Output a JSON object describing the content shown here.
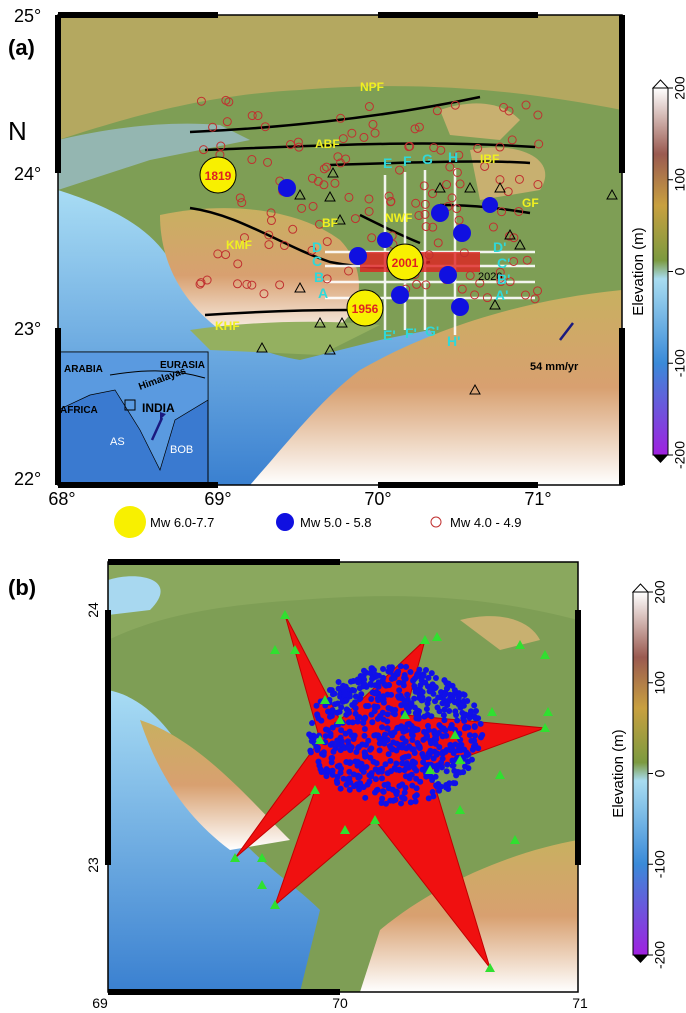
{
  "panel_a": {
    "label": "(a)",
    "north": "N",
    "lat_ticks": [
      "25°",
      "24°",
      "23°",
      "22°"
    ],
    "lon_ticks": [
      "68°",
      "69°",
      "70°",
      "71°"
    ],
    "faults": [
      "NPF",
      "ABF",
      "IBF",
      "GF",
      "BF",
      "KMF",
      "KHF",
      "NWF"
    ],
    "events": [
      "1819",
      "2001",
      "1956"
    ],
    "year_label": "2020",
    "profiles": [
      "E",
      "F",
      "G",
      "H",
      "E'",
      "F'",
      "G'",
      "H'",
      "A",
      "B",
      "C",
      "D",
      "A'",
      "B'",
      "C'",
      "D'"
    ],
    "inset": [
      "ARABIA",
      "EURASIA",
      "Himalayas",
      "INDIA",
      "AFRICA",
      "AS",
      "BOB"
    ],
    "velocity": "54  mm/yr",
    "colorbar": {
      "title": "Elevation (m)",
      "ticks": [
        200,
        100,
        0,
        -100,
        -200
      ]
    }
  },
  "legend": [
    "Mw 6.0-7.7",
    "Mw 5.0  - 5.8",
    "Mw 4.0 - 4.9"
  ],
  "panel_b": {
    "label": "(b)",
    "lat_ticks": [
      24,
      23
    ],
    "lon_ticks": [
      69,
      70,
      71
    ],
    "colorbar": {
      "title": "Elevation (m)",
      "ticks": [
        200,
        100,
        0,
        -100,
        -200
      ]
    }
  }
}
